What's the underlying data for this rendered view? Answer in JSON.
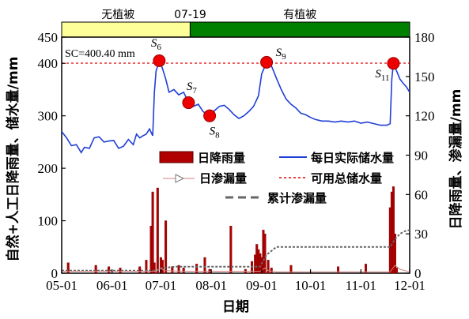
{
  "chart_data": {
    "type": "bar+line",
    "xlabel": "日期",
    "ylabel_left": "自然+人工日降雨量、储水量/mm",
    "ylabel_right": "日降雨量、渗漏量/mm",
    "x_ticks": [
      "05-01",
      "06-01",
      "07-01",
      "08-01",
      "09-01",
      "10-01",
      "11-01",
      "12-01"
    ],
    "x_range": [
      "2000-05-01",
      "2000-12-01"
    ],
    "ylim_left": [
      0,
      450
    ],
    "ylim_right": [
      0,
      180
    ],
    "left_ticks": [
      0,
      100,
      200,
      300,
      400,
      450
    ],
    "right_ticks": [
      0,
      30,
      60,
      90,
      120,
      150,
      180
    ],
    "bands": [
      {
        "label": "无植被",
        "start": "2000-05-01",
        "end": "2000-07-19",
        "color": "#ffff99"
      },
      {
        "label": "有植被",
        "start": "2000-07-19",
        "end": "2000-12-01",
        "color": "#008000"
      }
    ],
    "band_split_label": "07-19",
    "sc_label": "SC=400.40 mm",
    "sc_value": 400.4,
    "legend": {
      "rain": "日降雨量",
      "storage": "每日实际储水量",
      "seepage": "日渗漏量",
      "capacity": "可用总储水量",
      "cumulative": "累计渗漏量"
    },
    "points": [
      {
        "name": "S",
        "sub": "6",
        "date": "2000-06-30",
        "value": 405
      },
      {
        "name": "S",
        "sub": "7",
        "date": "2000-07-18",
        "value": 325
      },
      {
        "name": "S",
        "sub": "8",
        "date": "2000-07-31",
        "value": 300
      },
      {
        "name": "S",
        "sub": "9",
        "date": "2000-09-04",
        "value": 402
      },
      {
        "name": "S",
        "sub": "11",
        "date": "2000-11-21",
        "value": 400
      }
    ],
    "series": [
      {
        "name": "每日实际储水量",
        "axis": "left",
        "points": [
          [
            "2000-05-01",
            270
          ],
          [
            "2000-05-04",
            258
          ],
          [
            "2000-05-07",
            243
          ],
          [
            "2000-05-10",
            245
          ],
          [
            "2000-05-13",
            230
          ],
          [
            "2000-05-15",
            240
          ],
          [
            "2000-05-18",
            238
          ],
          [
            "2000-05-21",
            258
          ],
          [
            "2000-05-24",
            260
          ],
          [
            "2000-05-27",
            250
          ],
          [
            "2000-05-30",
            252
          ],
          [
            "2000-06-02",
            253
          ],
          [
            "2000-06-05",
            238
          ],
          [
            "2000-06-08",
            242
          ],
          [
            "2000-06-11",
            255
          ],
          [
            "2000-06-14",
            245
          ],
          [
            "2000-06-16",
            265
          ],
          [
            "2000-06-18",
            258
          ],
          [
            "2000-06-20",
            262
          ],
          [
            "2000-06-22",
            265
          ],
          [
            "2000-06-24",
            275
          ],
          [
            "2000-06-26",
            262
          ],
          [
            "2000-06-27",
            345
          ],
          [
            "2000-06-28",
            385
          ],
          [
            "2000-06-30",
            405
          ],
          [
            "2000-07-02",
            390
          ],
          [
            "2000-07-04",
            370
          ],
          [
            "2000-07-06",
            345
          ],
          [
            "2000-07-09",
            350
          ],
          [
            "2000-07-12",
            340
          ],
          [
            "2000-07-15",
            345
          ],
          [
            "2000-07-18",
            325
          ],
          [
            "2000-07-21",
            318
          ],
          [
            "2000-07-24",
            322
          ],
          [
            "2000-07-27",
            308
          ],
          [
            "2000-07-31",
            300
          ],
          [
            "2000-08-03",
            310
          ],
          [
            "2000-08-06",
            318
          ],
          [
            "2000-08-09",
            320
          ],
          [
            "2000-08-12",
            312
          ],
          [
            "2000-08-15",
            302
          ],
          [
            "2000-08-18",
            295
          ],
          [
            "2000-08-21",
            300
          ],
          [
            "2000-08-24",
            308
          ],
          [
            "2000-08-27",
            318
          ],
          [
            "2000-08-30",
            338
          ],
          [
            "2000-09-01",
            380
          ],
          [
            "2000-09-04",
            402
          ],
          [
            "2000-09-07",
            395
          ],
          [
            "2000-09-10",
            372
          ],
          [
            "2000-09-13",
            350
          ],
          [
            "2000-09-16",
            332
          ],
          [
            "2000-09-19",
            322
          ],
          [
            "2000-09-22",
            315
          ],
          [
            "2000-09-25",
            305
          ],
          [
            "2000-09-28",
            302
          ],
          [
            "2000-10-01",
            297
          ],
          [
            "2000-10-04",
            293
          ],
          [
            "2000-10-08",
            290
          ],
          [
            "2000-10-12",
            290
          ],
          [
            "2000-10-16",
            288
          ],
          [
            "2000-10-20",
            290
          ],
          [
            "2000-10-24",
            288
          ],
          [
            "2000-10-28",
            290
          ],
          [
            "2000-11-01",
            286
          ],
          [
            "2000-11-05",
            288
          ],
          [
            "2000-11-09",
            285
          ],
          [
            "2000-11-13",
            282
          ],
          [
            "2000-11-17",
            282
          ],
          [
            "2000-11-19",
            285
          ],
          [
            "2000-11-20",
            370
          ],
          [
            "2000-11-21",
            400
          ],
          [
            "2000-11-23",
            385
          ],
          [
            "2000-11-25",
            370
          ],
          [
            "2000-11-27",
            362
          ],
          [
            "2000-11-29",
            355
          ],
          [
            "2000-12-01",
            345
          ]
        ]
      },
      {
        "name": "日降雨量",
        "axis": "right",
        "points": [
          [
            "2000-05-05",
            8
          ],
          [
            "2000-05-22",
            6
          ],
          [
            "2000-05-30",
            5
          ],
          [
            "2000-06-06",
            4
          ],
          [
            "2000-06-18",
            5
          ],
          [
            "2000-06-22",
            10
          ],
          [
            "2000-06-25",
            36
          ],
          [
            "2000-06-26",
            62
          ],
          [
            "2000-06-27",
            8
          ],
          [
            "2000-06-29",
            65
          ],
          [
            "2000-07-01",
            12
          ],
          [
            "2000-07-02",
            10
          ],
          [
            "2000-07-04",
            40
          ],
          [
            "2000-07-08",
            5
          ],
          [
            "2000-07-12",
            6
          ],
          [
            "2000-07-15",
            4
          ],
          [
            "2000-07-23",
            7
          ],
          [
            "2000-07-28",
            12
          ],
          [
            "2000-07-31",
            3
          ],
          [
            "2000-08-13",
            36
          ],
          [
            "2000-08-22",
            3
          ],
          [
            "2000-08-26",
            9
          ],
          [
            "2000-08-28",
            14
          ],
          [
            "2000-08-29",
            22
          ],
          [
            "2000-08-30",
            18
          ],
          [
            "2000-08-31",
            15
          ],
          [
            "2000-09-01",
            12
          ],
          [
            "2000-09-02",
            33
          ],
          [
            "2000-09-03",
            30
          ],
          [
            "2000-09-05",
            10
          ],
          [
            "2000-09-07",
            4
          ],
          [
            "2000-09-19",
            6
          ],
          [
            "2000-10-18",
            5
          ],
          [
            "2000-11-04",
            7
          ],
          [
            "2000-11-19",
            50
          ],
          [
            "2000-11-20",
            62
          ],
          [
            "2000-11-21",
            66
          ],
          [
            "2000-11-22",
            30
          ],
          [
            "2000-11-23",
            4
          ]
        ]
      },
      {
        "name": "日渗漏量",
        "axis": "right",
        "points": [
          [
            "2000-05-01",
            1.5
          ],
          [
            "2000-06-28",
            1.5
          ],
          [
            "2000-07-01",
            4
          ],
          [
            "2000-07-03",
            2
          ],
          [
            "2000-07-15",
            1.5
          ],
          [
            "2000-08-31",
            1.5
          ],
          [
            "2000-09-03",
            4
          ],
          [
            "2000-09-05",
            2
          ],
          [
            "2000-09-10",
            1
          ],
          [
            "2000-11-19",
            1
          ],
          [
            "2000-11-22",
            6
          ],
          [
            "2000-11-25",
            3
          ],
          [
            "2000-12-01",
            1
          ]
        ]
      },
      {
        "name": "可用总储水量",
        "axis": "left",
        "points": [
          [
            "2000-05-01",
            400.4
          ],
          [
            "2000-12-01",
            400.4
          ]
        ]
      },
      {
        "name": "累计渗漏量",
        "axis": "right",
        "points": [
          [
            "2000-05-01",
            2
          ],
          [
            "2000-06-28",
            2
          ],
          [
            "2000-07-02",
            4
          ],
          [
            "2000-07-10",
            5
          ],
          [
            "2000-08-31",
            5
          ],
          [
            "2000-09-04",
            14
          ],
          [
            "2000-09-10",
            20
          ],
          [
            "2000-11-19",
            20
          ],
          [
            "2000-11-22",
            26
          ],
          [
            "2000-11-25",
            30
          ],
          [
            "2000-11-28",
            32
          ],
          [
            "2000-12-01",
            33
          ]
        ]
      }
    ]
  }
}
